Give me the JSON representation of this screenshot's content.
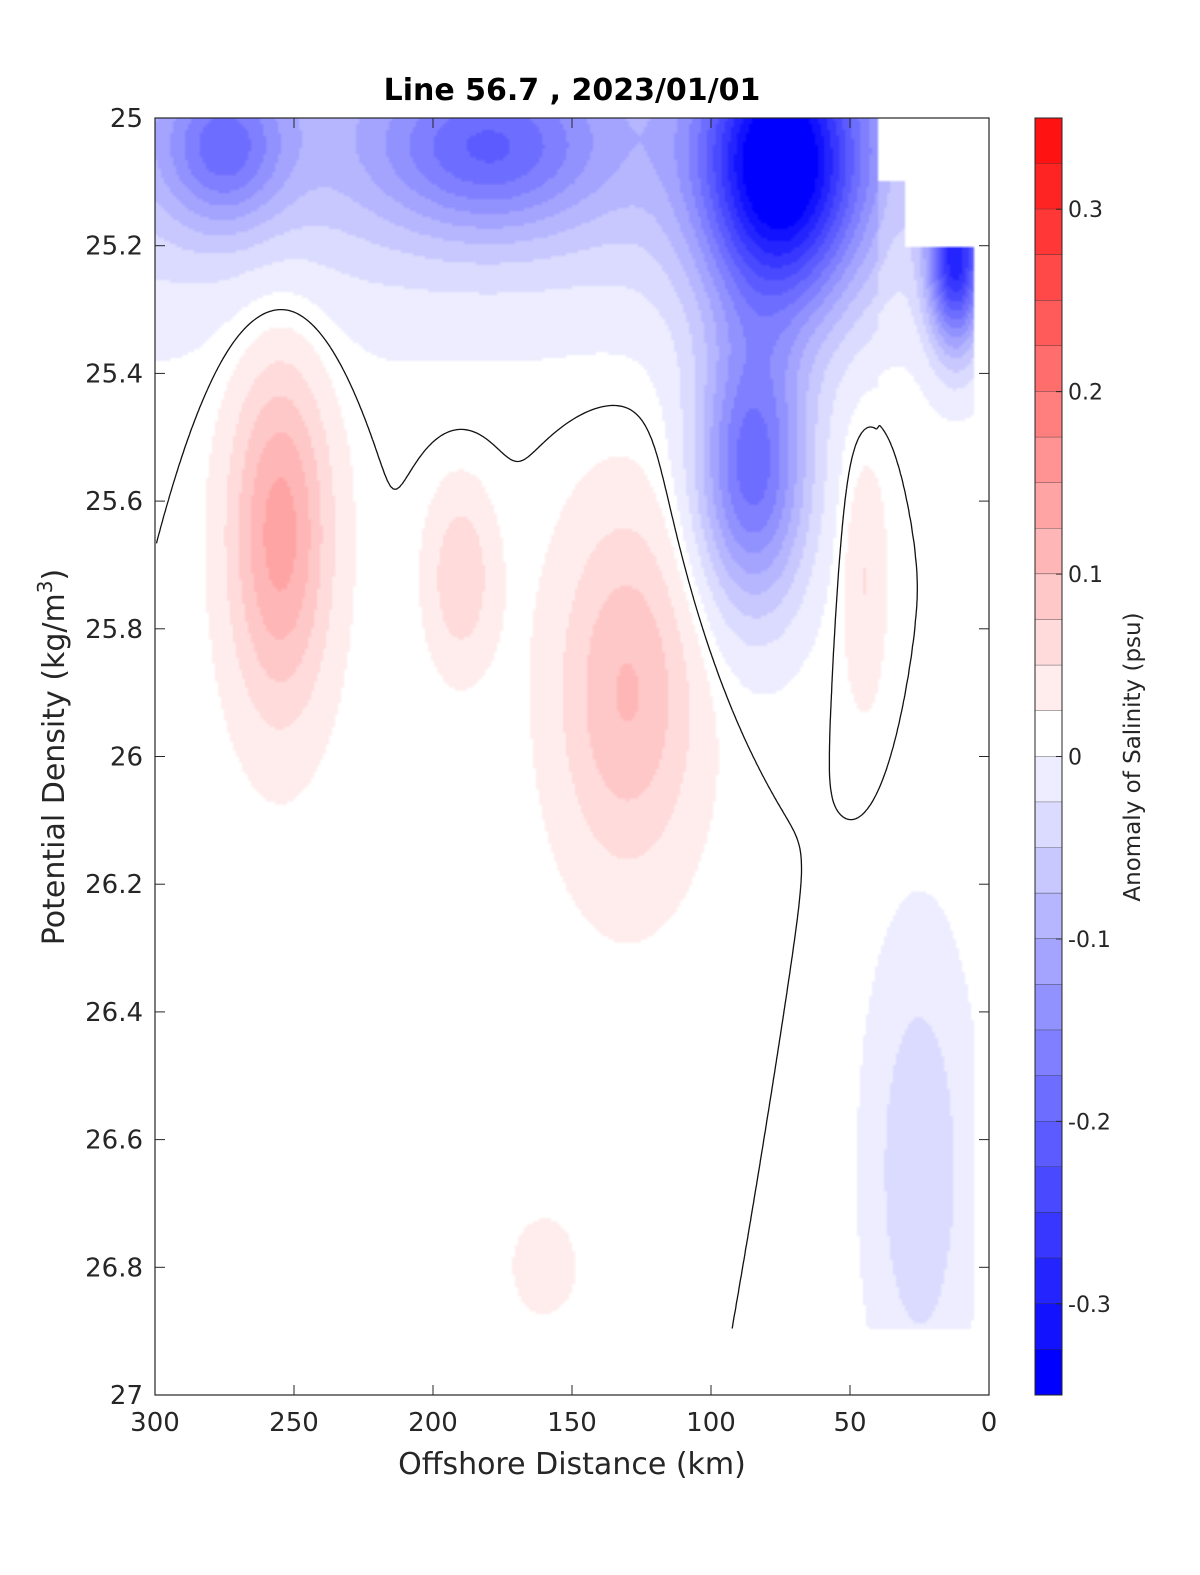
{
  "chart_data": {
    "type": "heatmap",
    "subtype": "filled-contour section",
    "title": "Line 56.7 , 2023/01/01",
    "xlabel": "Offshore Distance (km)",
    "ylabel_main": "Potential Density (kg/m",
    "ylabel_sup": "3",
    "ylabel_close": ")",
    "colorbar_label": "Anomaly of Salinity (psu)",
    "xlim": [
      300,
      0
    ],
    "ylim": [
      25,
      27
    ],
    "x_reversed": true,
    "y_reversed": true,
    "x_ticks": [
      300,
      250,
      200,
      150,
      100,
      50,
      0
    ],
    "x_tick_labels": [
      "300",
      "250",
      "200",
      "150",
      "100",
      "50",
      "0"
    ],
    "y_ticks": [
      25,
      25.2,
      25.4,
      25.6,
      25.8,
      26,
      26.2,
      26.4,
      26.6,
      26.8,
      27
    ],
    "y_tick_labels": [
      "25",
      "25.2",
      "25.4",
      "25.6",
      "25.8",
      "26",
      "26.2",
      "26.4",
      "26.6",
      "26.8",
      "27"
    ],
    "colorbar_range": [
      -0.35,
      0.35
    ],
    "colorbar_step": 0.025,
    "colorbar_ticks": [
      0.3,
      0.2,
      0.1,
      0,
      -0.1,
      -0.2,
      -0.3
    ],
    "colorbar_tick_labels": [
      "0.3",
      "0.2",
      "0.1",
      "0",
      "-0.1",
      "-0.2",
      "-0.3"
    ],
    "colormap": {
      "negative": "#0000ff",
      "zero": "#ffffff",
      "positive": "#ff0000"
    },
    "contour_line_level": 0,
    "grid": false,
    "data_region": {
      "x_range": [
        300,
        5
      ],
      "y_range": [
        25,
        26.9
      ]
    },
    "features": [
      {
        "name": "surface fresh core",
        "x": 75,
        "y": 25.08,
        "value": -0.33
      },
      {
        "name": "fresh tongue",
        "x": 85,
        "y": 25.55,
        "value": -0.2
      },
      {
        "name": "coastal fresh patch",
        "x": 12,
        "y": 25.22,
        "value": -0.28
      },
      {
        "name": "offshore surface fresh",
        "x": 275,
        "y": 25.05,
        "value": -0.13
      },
      {
        "name": "mid fresh band",
        "x": 180,
        "y": 25.05,
        "value": -0.14
      },
      {
        "name": "salty core west",
        "x": 255,
        "y": 25.65,
        "value": 0.125
      },
      {
        "name": "salty core central",
        "x": 130,
        "y": 25.9,
        "value": 0.09
      },
      {
        "name": "salty patch",
        "x": 190,
        "y": 25.72,
        "value": 0.06
      },
      {
        "name": "nearshore salty",
        "x": 45,
        "y": 25.72,
        "value": 0.04
      },
      {
        "name": "deep nearshore fresh",
        "x": 25,
        "y": 26.65,
        "value": -0.06
      },
      {
        "name": "deep salty",
        "x": 160,
        "y": 26.8,
        "value": 0.03
      }
    ]
  }
}
